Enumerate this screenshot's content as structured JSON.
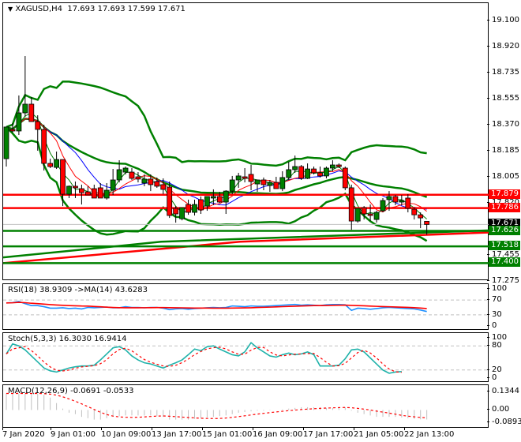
{
  "window": {
    "symbol_label": "XAGUSD,H4",
    "ohlc_label": "17.693 17.693 17.599 17.671"
  },
  "colors": {
    "bull": "#008000",
    "bear": "#ff0000",
    "bands": "#008000",
    "ma_fast": "#008000",
    "ma_mid": "#ff0000",
    "ma_slow": "#0000ff",
    "rsi": "#1e90ff",
    "rsi_ma": "#ff0000",
    "stoch_main": "#20b2aa",
    "stoch_signal": "#ff0000",
    "macd_hist": "#c0c0c0",
    "macd_signal": "#ff0000",
    "level_grid": "#c0c0c0"
  },
  "price_axis": {
    "ticks": [
      "19.100",
      "18.920",
      "18.735",
      "18.555",
      "18.370",
      "18.185",
      "18.005",
      "17.820",
      "17.455",
      "17.275"
    ],
    "tags": [
      {
        "value": "17.879",
        "color": "#ff0000"
      },
      {
        "value": "17.786",
        "color": "#ff0000"
      },
      {
        "value": "17.671",
        "color": "#000000"
      },
      {
        "value": "17.626",
        "color": "#008000"
      },
      {
        "value": "17.518",
        "color": "#008000"
      },
      {
        "value": "17.400",
        "color": "#008000"
      }
    ]
  },
  "indicators": {
    "rsi": {
      "label": "RSI(18) 38.9309  ->MA(14) 43.6283",
      "ticks": [
        "100",
        "70",
        "30",
        "0"
      ]
    },
    "stoch": {
      "label": "Stoch(5,3,3) 16.3030 16.9414",
      "ticks": [
        "100",
        "80",
        "20",
        "0"
      ]
    },
    "macd": {
      "label": "MACD(12,26,9) -0.0691 -0.0533",
      "ticks": [
        "0.1344",
        "0.00",
        "-0.0893"
      ]
    }
  },
  "time_axis": {
    "labels": [
      "7 Jan 2020",
      "9 Jan 01:00",
      "10 Jan 09:00",
      "13 Jan 17:00",
      "15 Jan 01:00",
      "16 Jan 09:00",
      "17 Jan 17:00",
      "21 Jan 05:00",
      "22 Jan 13:00"
    ]
  },
  "chart_data": {
    "type": "candlestick",
    "title": "XAGUSD,H4",
    "last_ohlc": {
      "open": 17.693,
      "high": 17.693,
      "low": 17.599,
      "close": 17.671
    },
    "ylim": [
      17.275,
      19.1
    ],
    "horizontal_levels": [
      {
        "price": 17.879,
        "color": "#ff0000"
      },
      {
        "price": 17.786,
        "color": "#ff0000"
      },
      {
        "price": 17.626,
        "color": "#008000"
      },
      {
        "price": 17.518,
        "color": "#008000"
      },
      {
        "price": 17.4,
        "color": "#008000"
      }
    ],
    "candles": [
      [
        18.132,
        18.354,
        18.077,
        18.354
      ],
      [
        18.337,
        18.381,
        18.315,
        18.326
      ],
      [
        18.326,
        18.575,
        18.298,
        18.453
      ],
      [
        18.453,
        18.851,
        18.425,
        18.514
      ],
      [
        18.514,
        18.564,
        18.409,
        18.392
      ],
      [
        18.392,
        18.436,
        18.188,
        18.337
      ],
      [
        18.337,
        18.37,
        18.049,
        18.099
      ],
      [
        18.099,
        18.132,
        18.066,
        18.077
      ],
      [
        18.071,
        18.182,
        18.06,
        18.126
      ],
      [
        18.126,
        18.126,
        17.8,
        17.883
      ],
      [
        17.883,
        17.944,
        17.856,
        17.939
      ],
      [
        17.939,
        17.972,
        17.856,
        17.928
      ],
      [
        17.922,
        17.95,
        17.811,
        17.894
      ],
      [
        17.9,
        17.939,
        17.878,
        17.878
      ],
      [
        17.922,
        17.95,
        17.878,
        17.856
      ],
      [
        17.928,
        17.961,
        17.872,
        17.856
      ],
      [
        17.856,
        17.961,
        17.845,
        17.911
      ],
      [
        17.911,
        18.06,
        17.878,
        17.983
      ],
      [
        17.983,
        18.121,
        17.966,
        18.055
      ],
      [
        18.038,
        18.077,
        18.022,
        18.066
      ],
      [
        18.038,
        18.066,
        17.983,
        17.994
      ],
      [
        18.005,
        18.038,
        17.966,
        17.989
      ],
      [
        17.961,
        18.022,
        17.939,
        17.989
      ],
      [
        17.989,
        18.022,
        17.905,
        17.95
      ],
      [
        17.972,
        18.0,
        17.928,
        17.939
      ],
      [
        17.95,
        17.994,
        17.883,
        17.917
      ],
      [
        17.933,
        17.972,
        17.717,
        17.734
      ],
      [
        17.784,
        17.8,
        17.684,
        17.745
      ],
      [
        17.711,
        17.784,
        17.7,
        17.789
      ],
      [
        17.811,
        17.845,
        17.739,
        17.756
      ],
      [
        17.756,
        17.845,
        17.734,
        17.811
      ],
      [
        17.845,
        17.867,
        17.745,
        17.773
      ],
      [
        17.8,
        17.856,
        17.767,
        17.867
      ],
      [
        17.856,
        17.917,
        17.806,
        17.867
      ],
      [
        17.867,
        17.9,
        17.822,
        17.828
      ],
      [
        17.828,
        17.911,
        17.745,
        17.905
      ],
      [
        17.905,
        18.011,
        17.883,
        17.983
      ],
      [
        17.983,
        18.033,
        17.928,
        18.011
      ],
      [
        18.005,
        18.066,
        17.966,
        17.994
      ],
      [
        18.022,
        18.088,
        17.911,
        17.972
      ],
      [
        17.955,
        17.983,
        17.9,
        17.983
      ],
      [
        17.983,
        18.0,
        17.911,
        17.95
      ],
      [
        17.944,
        17.983,
        17.9,
        17.966
      ],
      [
        17.966,
        18.005,
        17.933,
        17.922
      ],
      [
        17.922,
        18.044,
        17.905,
        18.0
      ],
      [
        18.0,
        18.11,
        17.983,
        18.055
      ],
      [
        18.055,
        18.154,
        18.033,
        18.077
      ],
      [
        18.077,
        18.088,
        17.983,
        17.994
      ],
      [
        17.994,
        18.099,
        17.989,
        18.06
      ],
      [
        18.06,
        18.077,
        18.022,
        18.033
      ],
      [
        18.033,
        18.077,
        18.0,
        18.011
      ],
      [
        18.011,
        18.077,
        17.994,
        18.066
      ],
      [
        18.066,
        18.121,
        18.044,
        18.088
      ],
      [
        18.088,
        18.099,
        18.066,
        18.077
      ],
      [
        18.066,
        18.077,
        17.911,
        17.928
      ],
      [
        17.928,
        17.95,
        17.634,
        17.695
      ],
      [
        17.695,
        17.778,
        17.684,
        17.784
      ],
      [
        17.789,
        17.8,
        17.706,
        17.745
      ],
      [
        17.745,
        17.811,
        17.695,
        17.734
      ],
      [
        17.706,
        17.767,
        17.684,
        17.756
      ],
      [
        17.767,
        17.856,
        17.756,
        17.839
      ],
      [
        17.845,
        17.905,
        17.767,
        17.867
      ],
      [
        17.867,
        17.878,
        17.806,
        17.828
      ],
      [
        17.828,
        17.878,
        17.806,
        17.839
      ],
      [
        17.856,
        17.883,
        17.756,
        17.784
      ],
      [
        17.778,
        17.789,
        17.706,
        17.739
      ],
      [
        17.739,
        17.756,
        17.645,
        17.717
      ],
      [
        17.693,
        17.693,
        17.599,
        17.671
      ]
    ],
    "series": [
      {
        "name": "RSI(18)",
        "last": 38.9309
      },
      {
        "name": "MA(14) of RSI",
        "last": 43.6283
      },
      {
        "name": "Stoch %K(5,3,3)",
        "last": 16.303
      },
      {
        "name": "Stoch %D",
        "last": 16.9414
      },
      {
        "name": "MACD(12,26,9) main",
        "last": -0.0691
      },
      {
        "name": "MACD signal",
        "last": -0.0533
      }
    ],
    "indicator_ranges": {
      "rsi": [
        0,
        100
      ],
      "rsi_levels": [
        30,
        70
      ],
      "stoch": [
        0,
        100
      ],
      "stoch_levels": [
        20,
        80
      ],
      "macd": [
        -0.0893,
        0.1344
      ]
    }
  }
}
